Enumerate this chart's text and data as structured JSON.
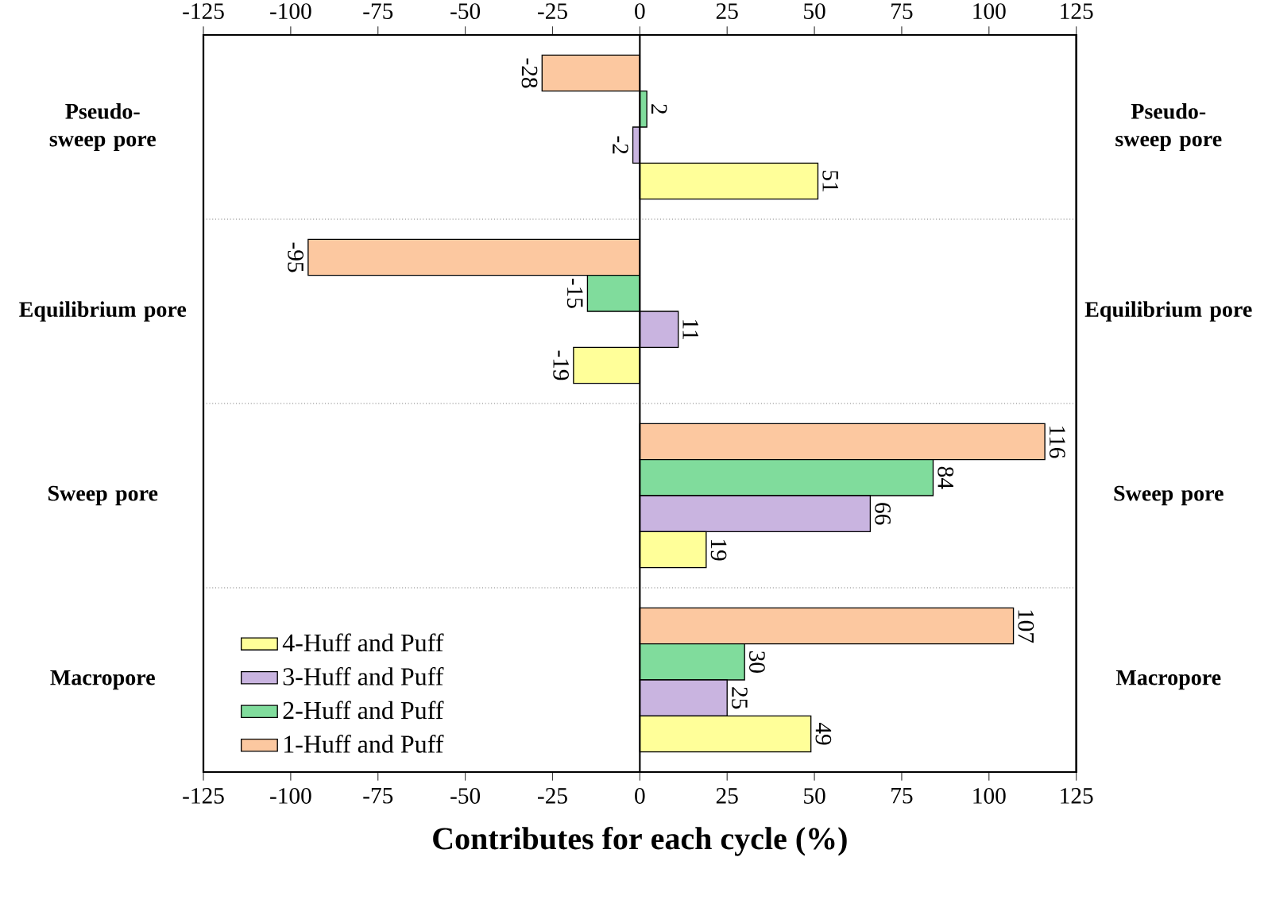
{
  "chart_data": {
    "type": "bar",
    "orientation": "horizontal",
    "xlabel": "Contributes for each cycle (%)",
    "categories": [
      "Pseudo-sweep pore",
      "Equilibrium pore",
      "Sweep pore",
      "Macropore"
    ],
    "y2_categories": [
      "Pseudo-sweep pore",
      "Equilibrium pore",
      "Sweep pore",
      "Macropore"
    ],
    "series": [
      {
        "name": "1-Huff and Puff",
        "color": "#fcc8a0",
        "values": [
          -28,
          -95,
          116,
          107
        ]
      },
      {
        "name": "2-Huff and Puff",
        "color": "#80dc9c",
        "values": [
          2,
          -15,
          84,
          30
        ]
      },
      {
        "name": "3-Huff and Puff",
        "color": "#c9b4e0",
        "values": [
          -2,
          11,
          66,
          25
        ]
      },
      {
        "name": "4-Huff and Puff",
        "color": "#ffff99",
        "values": [
          51,
          -19,
          19,
          49
        ]
      }
    ],
    "xlim": [
      -125,
      125
    ],
    "xticks": [
      -125,
      -100,
      -75,
      -50,
      -25,
      0,
      25,
      50,
      75,
      100,
      125
    ],
    "x2lim": [
      -125,
      125
    ],
    "x2ticks": [
      -125,
      -100,
      -75,
      -50,
      -25,
      0,
      25,
      50,
      75,
      100,
      125
    ],
    "data_labels": true,
    "grid": "y",
    "legend": "bottom left"
  }
}
